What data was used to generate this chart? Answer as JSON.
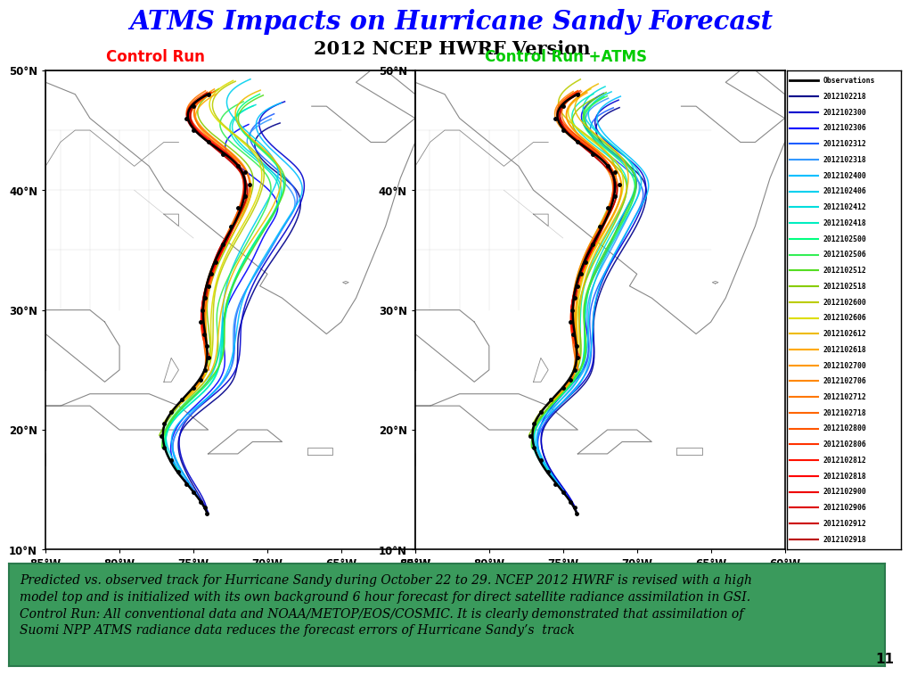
{
  "title1": "ATMS Impacts on Hurricane Sandy Forecast",
  "title2": "2012 NCEP HWRF Version",
  "title1_color": "#0000FF",
  "title2_color": "black",
  "label_left": "Control Run",
  "label_right": "Control Run +ATMS",
  "label_left_color": "red",
  "label_right_color": "#00CC00",
  "caption": "Predicted vs. observed track for Hurricane Sandy during October 22 to 29. NCEP 2012 HWRF is revised with a high\nmodel top and is initialized with its own background 6 hour forecast for direct satellite radiance assimilation in GSI.\nControl Run: All conventional data and NOAA/METOP/EOS/COSMIC. It is clearly demonstrated that assimilation of\nSuomi NPP ATMS radiance data reduces the forecast errors of Hurricane Sandy’s  track",
  "caption_bg": "#3a9a5c",
  "legend_labels": [
    "Observations",
    "2012102218",
    "2012102300",
    "2012102306",
    "2012102312",
    "2012102318",
    "2012102400",
    "2012102406",
    "2012102412",
    "2012102418",
    "2012102500",
    "2012102506",
    "2012102512",
    "2012102518",
    "2012102600",
    "2012102606",
    "2012102612",
    "2012102618",
    "2012102700",
    "2012102706",
    "2012102712",
    "2012102718",
    "2012102800",
    "2012102806",
    "2012102812",
    "2012102818",
    "2012102900",
    "2012102906",
    "2012102912",
    "2012102918"
  ],
  "legend_colors": [
    "black",
    "#00008B",
    "#0000CD",
    "#0000FF",
    "#1E5EFF",
    "#3399FF",
    "#00BFFF",
    "#00D0EE",
    "#00DDDD",
    "#00EEC0",
    "#00FF80",
    "#33EE55",
    "#55DD22",
    "#88CC00",
    "#BBCC00",
    "#DDDD00",
    "#EEBB00",
    "#FFAA00",
    "#FF9900",
    "#FF8800",
    "#FF7700",
    "#FF6600",
    "#FF5500",
    "#FF3300",
    "#FF1100",
    "#FF0000",
    "#EE0000",
    "#DD0000",
    "#CC0000",
    "#BB0000"
  ],
  "xlim": [
    -85,
    -60
  ],
  "ylim": [
    10,
    50
  ],
  "xticks": [
    -85,
    -80,
    -75,
    -70,
    -65,
    -60
  ],
  "yticks": [
    10,
    20,
    30,
    40,
    50
  ],
  "xticklabels": [
    "85°W",
    "80°W",
    "75°W",
    "70°W",
    "65°W",
    "60°W"
  ],
  "yticklabels": [
    "10°N",
    "20°N",
    "30°N",
    "40°N",
    "50°N"
  ],
  "obs_lons": [
    -74.1,
    -74.2,
    -74.5,
    -75.0,
    -75.5,
    -76.0,
    -76.5,
    -77.0,
    -77.2,
    -77.0,
    -76.5,
    -75.8,
    -75.0,
    -74.5,
    -74.2,
    -74.0,
    -74.1,
    -74.3,
    -74.5,
    -74.4,
    -74.2,
    -74.0,
    -73.8,
    -73.5,
    -73.0,
    -72.5,
    -72.0,
    -71.5,
    -71.2,
    -71.5,
    -72.0,
    -73.0,
    -74.0,
    -75.0,
    -75.5,
    -75.0,
    -74.0
  ],
  "obs_lats": [
    13.0,
    13.5,
    14.0,
    14.8,
    15.5,
    16.5,
    17.5,
    18.5,
    19.5,
    20.5,
    21.5,
    22.5,
    23.5,
    24.2,
    25.0,
    26.0,
    27.0,
    28.0,
    29.0,
    30.0,
    31.0,
    32.0,
    33.0,
    34.0,
    35.5,
    37.0,
    38.5,
    39.5,
    40.5,
    41.5,
    42.0,
    43.0,
    44.0,
    45.0,
    46.0,
    47.0,
    48.0
  ],
  "background_color": "white",
  "map_bg": "white",
  "coastline_color": "#888888",
  "page_number": "11"
}
